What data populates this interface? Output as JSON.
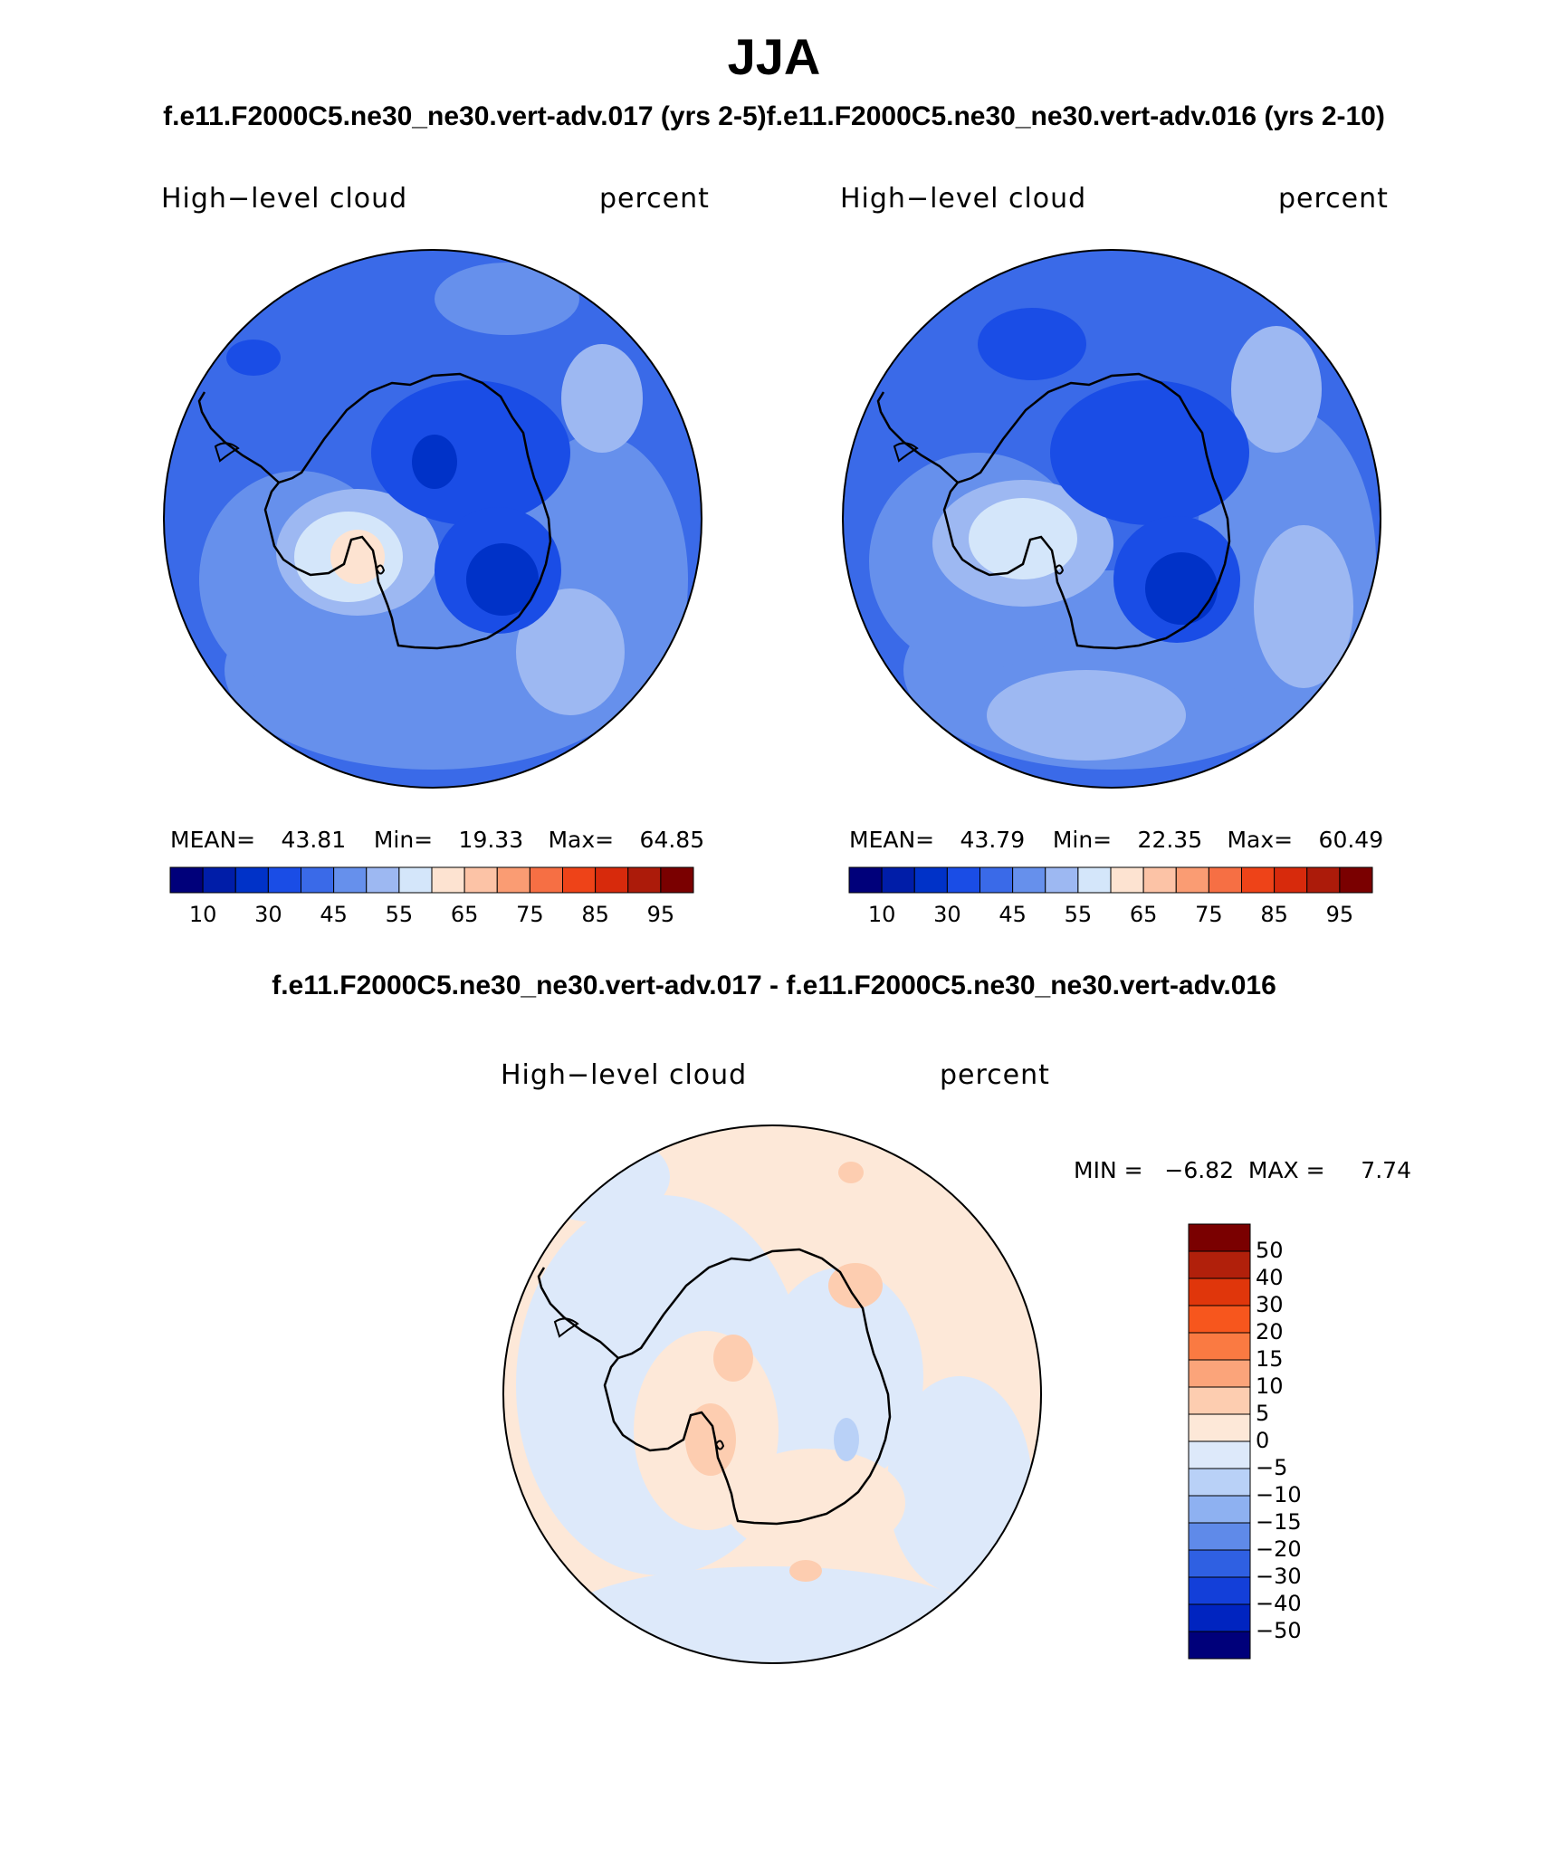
{
  "main_title": "JJA",
  "panel_a": {
    "case": "f.e11.F2000C5.ne30_ne30.vert-adv.017 (yrs 2-5)",
    "variable": "High−level cloud",
    "units": "percent",
    "stats": {
      "mean_label": "MEAN=",
      "mean": "43.81",
      "min_label": "Min=",
      "min": "19.33",
      "max_label": "Max=",
      "max": "64.85"
    }
  },
  "panel_b": {
    "case": "f.e11.F2000C5.ne30_ne30.vert-adv.016 (yrs 2-10)",
    "variable": "High−level cloud",
    "units": "percent",
    "stats": {
      "mean_label": "MEAN=",
      "mean": "43.79",
      "min_label": "Min=",
      "min": "22.35",
      "max_label": "Max=",
      "max": "60.49"
    }
  },
  "panel_diff": {
    "title": "f.e11.F2000C5.ne30_ne30.vert-adv.017 - f.e11.F2000C5.ne30_ne30.vert-adv.016",
    "variable": "High−level cloud",
    "units": "percent",
    "minmax": "MIN =   −6.82  MAX =     7.74"
  },
  "abs_colorbar": {
    "colors": [
      "#00007a",
      "#001da8",
      "#0032c8",
      "#1a4de6",
      "#3a6ae8",
      "#6690ec",
      "#9db8f2",
      "#d4e6fa",
      "#fde3d1",
      "#fcc3a6",
      "#fa9c73",
      "#f66f44",
      "#ee4318",
      "#d72a0c",
      "#ac1b0a",
      "#7a0000"
    ],
    "ticks": [
      "10",
      "30",
      "45",
      "55",
      "65",
      "75",
      "85",
      "95"
    ]
  },
  "diff_colorbar": {
    "colors": [
      "#7a0000",
      "#b1200b",
      "#e0360b",
      "#f7561d",
      "#fa7a42",
      "#fba47a",
      "#fdcdb0",
      "#fde8d8",
      "#dde9fa",
      "#b9d1f7",
      "#8eb1f1",
      "#5f8ae9",
      "#2f60e2",
      "#133fd9",
      "#0024c0",
      "#00007a"
    ],
    "ticks": [
      "50",
      "40",
      "30",
      "20",
      "15",
      "10",
      "5",
      "0",
      "−5",
      "−10",
      "−15",
      "−20",
      "−30",
      "−40",
      "−50"
    ]
  }
}
